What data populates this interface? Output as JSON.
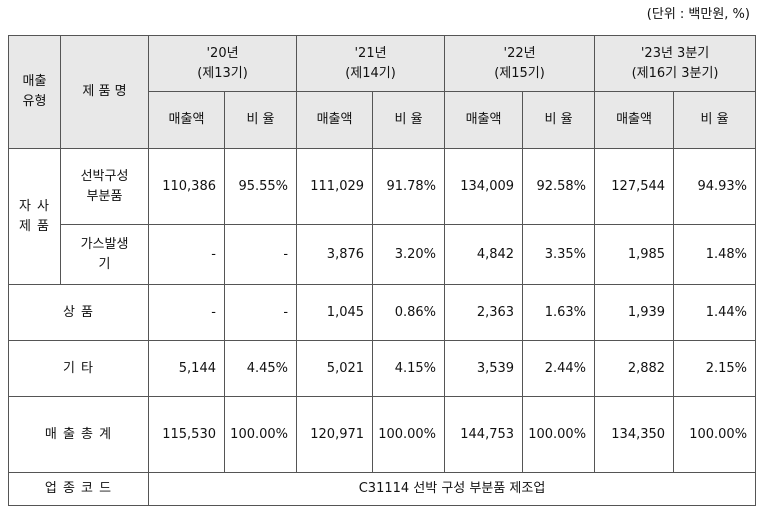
{
  "unit_note": "(단위 : 백만원, %)",
  "header": {
    "sales_type": "매출\n유형",
    "product_name": "제 품 명",
    "periods": [
      {
        "year": "'20년",
        "term": "(제13기)"
      },
      {
        "year": "'21년",
        "term": "(제14기)"
      },
      {
        "year": "'22년",
        "term": "(제15기)"
      },
      {
        "year": "'23년 3분기",
        "term": "(제16기 3분기)"
      }
    ],
    "sales_label": "매출액",
    "ratio_label": "비 율"
  },
  "rows": {
    "own_products_label": "자 사\n제 품",
    "foil_parts": {
      "name": "선박구성\n부분품",
      "values": [
        "110,386",
        "95.55%",
        "111,029",
        "91.78%",
        "134,009",
        "92.58%",
        "127,544",
        "94.93%"
      ]
    },
    "gas_generator": {
      "name": "가스발생\n기",
      "values": [
        "-",
        "-",
        "3,876",
        "3.20%",
        "4,842",
        "3.35%",
        "1,985",
        "1.48%"
      ]
    },
    "goods": {
      "name": "상 품",
      "values": [
        "-",
        "-",
        "1,045",
        "0.86%",
        "2,363",
        "1.63%",
        "1,939",
        "1.44%"
      ]
    },
    "other": {
      "name": "기 타",
      "values": [
        "5,144",
        "4.45%",
        "5,021",
        "4.15%",
        "3,539",
        "2.44%",
        "2,882",
        "2.15%"
      ]
    },
    "total": {
      "name": "매 출 총 계",
      "values": [
        "115,530",
        "100.00%",
        "120,971",
        "100.00%",
        "144,753",
        "100.00%",
        "134,350",
        "100.00%"
      ]
    },
    "industry": {
      "name": "업 종 코 드",
      "value": "C31114 선박 구성 부분품 제조업"
    }
  }
}
